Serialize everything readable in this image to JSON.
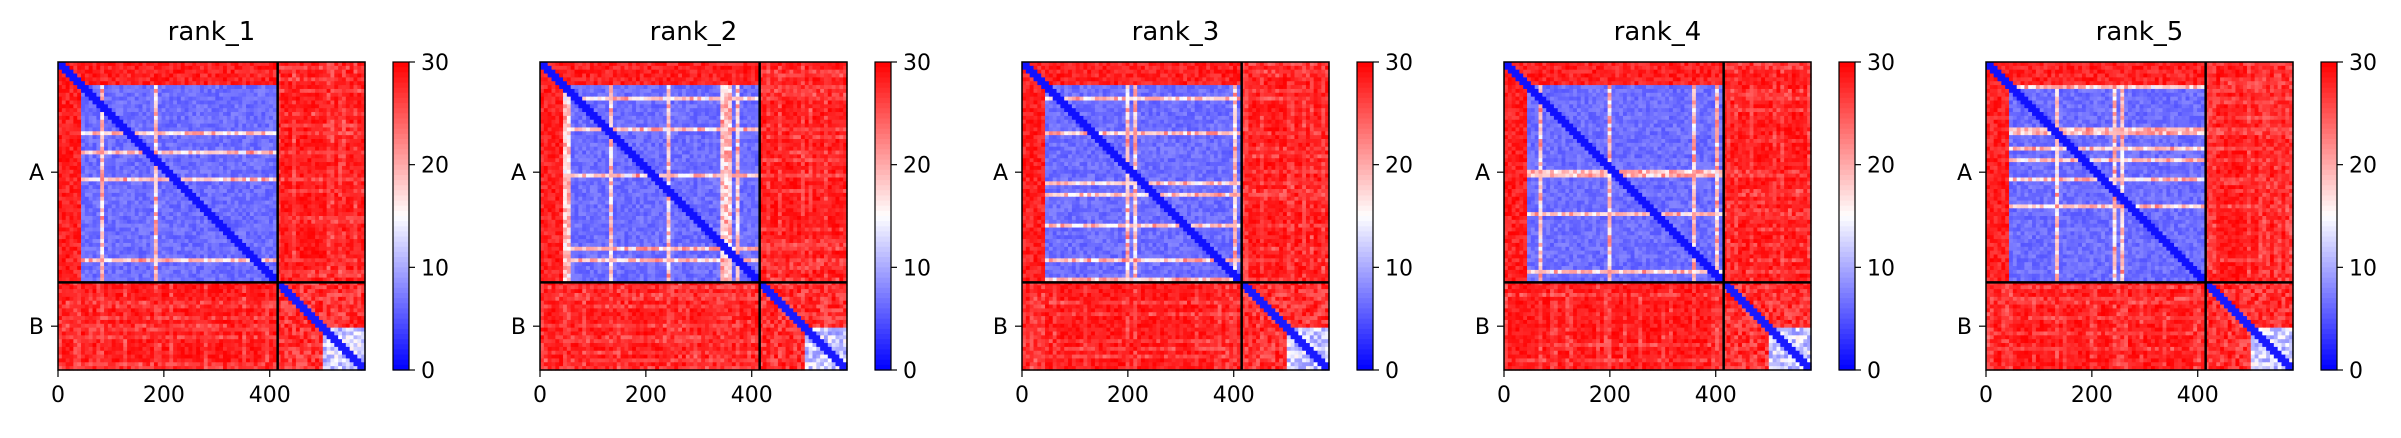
{
  "chart_data": {
    "type": "heatmap",
    "chain_labels": [
      "A",
      "B"
    ],
    "chain_boundary": 415,
    "matrix_size": 580,
    "x_ticks": [
      0,
      200,
      400
    ],
    "colorbar": {
      "min": 0,
      "max": 30,
      "ticks": [
        0,
        10,
        20,
        30
      ],
      "colors": [
        "#0000ff",
        "#ffffff",
        "#ff0000"
      ]
    },
    "panels": [
      {
        "title": "rank_1"
      },
      {
        "title": "rank_2"
      },
      {
        "title": "rank_3"
      },
      {
        "title": "rank_4"
      },
      {
        "title": "rank_5"
      }
    ]
  }
}
